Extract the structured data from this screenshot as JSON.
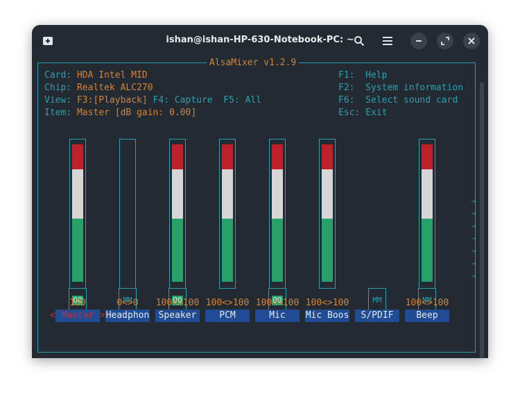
{
  "window": {
    "title": "ishan@ishan-HP-630-Notebook-PC: ~",
    "icons": [
      "new-tab-icon",
      "search-icon",
      "menu-icon",
      "minimize-icon",
      "maximize-icon",
      "close-icon"
    ]
  },
  "mixer": {
    "title": "AlsaMixer v1.2.9",
    "info": {
      "card_label": "Card:",
      "card_value": "HDA Intel MID",
      "chip_label": "Chip:",
      "chip_value": "Realtek ALC270",
      "view_label": "View:",
      "view_f3": "F3:[Playback]",
      "view_f4": "F4: Capture",
      "view_f5": "F5: All",
      "item_label": "Item:",
      "item_value": "Master [dB gain: 0.00]"
    },
    "keys": [
      {
        "key": "F1:",
        "action": "Help"
      },
      {
        "key": "F2:",
        "action": "System information"
      },
      {
        "key": "F6:",
        "action": "Select sound card"
      },
      {
        "key": "Esc:",
        "action": "Exit"
      }
    ],
    "channels": [
      {
        "name": "Master",
        "volume": "100",
        "level": 100,
        "switch": "OO",
        "has_bar": true
      },
      {
        "name": "Headphon",
        "volume": "0<>0",
        "level": 0,
        "switch": "MM",
        "has_bar": true
      },
      {
        "name": "Speaker",
        "volume": "100<>100",
        "level": 100,
        "switch": "OO",
        "has_bar": true
      },
      {
        "name": "PCM",
        "volume": "100<>100",
        "level": 100,
        "switch": "",
        "has_bar": true
      },
      {
        "name": "Mic",
        "volume": "100<>100",
        "level": 100,
        "switch": "OO",
        "has_bar": true
      },
      {
        "name": "Mic Boos",
        "volume": "100<>100",
        "level": 100,
        "switch": "",
        "has_bar": true
      },
      {
        "name": "S/PDIF",
        "volume": "",
        "level": null,
        "switch": "MM",
        "has_bar": false
      },
      {
        "name": "Beep",
        "volume": "100<>100",
        "level": 100,
        "switch": "MM",
        "has_bar": true
      }
    ],
    "selected_markers": {
      "left": "<",
      "right": ">"
    },
    "more_arrow": "→"
  },
  "colors": {
    "accent": "#2aa1b3",
    "label": "#d2843b",
    "bar_red": "#c0202a",
    "bar_white": "#d6d6d6",
    "bar_green": "#27a06a",
    "label_bg": "#1f4c95"
  }
}
